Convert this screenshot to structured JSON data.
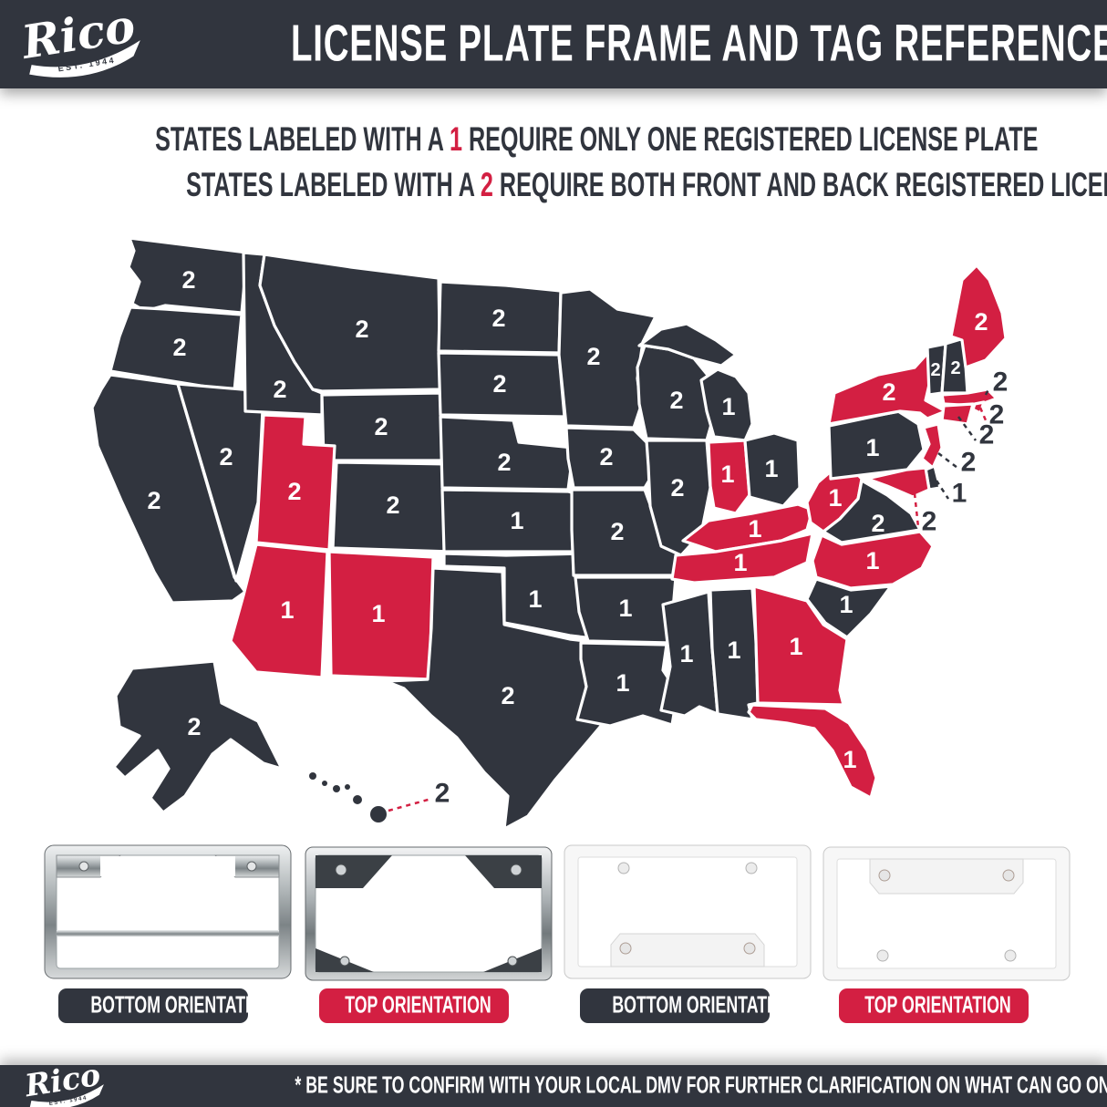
{
  "header": {
    "brand": "Rico",
    "brand_est": "EST. 1944",
    "title": "LICENSE PLATE FRAME AND TAG REFERENCE"
  },
  "legend": {
    "line1_prefix": "STATES LABELED WITH A ",
    "line1_num": "1",
    "line1_suffix": " REQUIRE ONLY ONE REGISTERED LICENSE PLATE",
    "line2_prefix": "STATES LABELED WITH A ",
    "line2_num": "2",
    "line2_suffix": " REQUIRE BOTH FRONT AND BACK REGISTERED LICENSE PLATES"
  },
  "colors": {
    "dark": "#31353E",
    "red": "#D31F42",
    "white": "#FFFFFF",
    "chrome": "#C9CDCF"
  },
  "map": {
    "orientation_color_key": {
      "bottom": "dark",
      "top": "red"
    },
    "states": [
      {
        "id": "WA",
        "name": "Washington",
        "plates": 2,
        "orientation": "bottom"
      },
      {
        "id": "OR",
        "name": "Oregon",
        "plates": 2,
        "orientation": "bottom"
      },
      {
        "id": "CA",
        "name": "California",
        "plates": 2,
        "orientation": "bottom"
      },
      {
        "id": "NV",
        "name": "Nevada",
        "plates": 2,
        "orientation": "bottom"
      },
      {
        "id": "ID",
        "name": "Idaho",
        "plates": 2,
        "orientation": "bottom"
      },
      {
        "id": "MT",
        "name": "Montana",
        "plates": 2,
        "orientation": "bottom"
      },
      {
        "id": "WY",
        "name": "Wyoming",
        "plates": 2,
        "orientation": "bottom"
      },
      {
        "id": "UT",
        "name": "Utah",
        "plates": 2,
        "orientation": "top"
      },
      {
        "id": "CO",
        "name": "Colorado",
        "plates": 2,
        "orientation": "bottom"
      },
      {
        "id": "AZ",
        "name": "Arizona",
        "plates": 1,
        "orientation": "top"
      },
      {
        "id": "NM",
        "name": "New Mexico",
        "plates": 1,
        "orientation": "top"
      },
      {
        "id": "ND",
        "name": "North Dakota",
        "plates": 2,
        "orientation": "bottom"
      },
      {
        "id": "SD",
        "name": "South Dakota",
        "plates": 2,
        "orientation": "bottom"
      },
      {
        "id": "NE",
        "name": "Nebraska",
        "plates": 2,
        "orientation": "bottom"
      },
      {
        "id": "KS",
        "name": "Kansas",
        "plates": 1,
        "orientation": "bottom"
      },
      {
        "id": "OK",
        "name": "Oklahoma",
        "plates": 1,
        "orientation": "bottom"
      },
      {
        "id": "TX",
        "name": "Texas",
        "plates": 2,
        "orientation": "bottom"
      },
      {
        "id": "MN",
        "name": "Minnesota",
        "plates": 2,
        "orientation": "bottom"
      },
      {
        "id": "IA",
        "name": "Iowa",
        "plates": 2,
        "orientation": "bottom"
      },
      {
        "id": "MO",
        "name": "Missouri",
        "plates": 2,
        "orientation": "bottom"
      },
      {
        "id": "AR",
        "name": "Arkansas",
        "plates": 1,
        "orientation": "bottom"
      },
      {
        "id": "LA",
        "name": "Louisiana",
        "plates": 1,
        "orientation": "bottom"
      },
      {
        "id": "WI",
        "name": "Wisconsin",
        "plates": 2,
        "orientation": "bottom"
      },
      {
        "id": "IL",
        "name": "Illinois",
        "plates": 2,
        "orientation": "bottom"
      },
      {
        "id": "MS",
        "name": "Mississippi",
        "plates": 1,
        "orientation": "bottom"
      },
      {
        "id": "AL",
        "name": "Alabama",
        "plates": 1,
        "orientation": "bottom"
      },
      {
        "id": "MI",
        "name": "Michigan",
        "plates": 1,
        "orientation": "bottom"
      },
      {
        "id": "IN",
        "name": "Indiana",
        "plates": 1,
        "orientation": "top"
      },
      {
        "id": "OH",
        "name": "Ohio",
        "plates": 1,
        "orientation": "bottom"
      },
      {
        "id": "KY",
        "name": "Kentucky",
        "plates": 1,
        "orientation": "top"
      },
      {
        "id": "TN",
        "name": "Tennessee",
        "plates": 1,
        "orientation": "top"
      },
      {
        "id": "WV",
        "name": "West Virginia",
        "plates": 1,
        "orientation": "top"
      },
      {
        "id": "VA",
        "name": "Virginia",
        "plates": 2,
        "orientation": "bottom"
      },
      {
        "id": "NC",
        "name": "North Carolina",
        "plates": 1,
        "orientation": "top"
      },
      {
        "id": "SC",
        "name": "South Carolina",
        "plates": 1,
        "orientation": "bottom"
      },
      {
        "id": "GA",
        "name": "Georgia",
        "plates": 1,
        "orientation": "top"
      },
      {
        "id": "FL",
        "name": "Florida",
        "plates": 1,
        "orientation": "top"
      },
      {
        "id": "PA",
        "name": "Pennsylvania",
        "plates": 1,
        "orientation": "bottom"
      },
      {
        "id": "NY",
        "name": "New York",
        "plates": 2,
        "orientation": "top"
      },
      {
        "id": "VT",
        "name": "Vermont",
        "plates": 2,
        "orientation": "bottom"
      },
      {
        "id": "NH",
        "name": "New Hampshire",
        "plates": 2,
        "orientation": "bottom"
      },
      {
        "id": "ME",
        "name": "Maine",
        "plates": 2,
        "orientation": "top"
      },
      {
        "id": "MA",
        "name": "Massachusetts",
        "plates": 2,
        "orientation": "top"
      },
      {
        "id": "RI",
        "name": "Rhode Island",
        "plates": 2,
        "orientation": "top"
      },
      {
        "id": "CT",
        "name": "Connecticut",
        "plates": 2,
        "orientation": "top"
      },
      {
        "id": "NJ",
        "name": "New Jersey",
        "plates": 2,
        "orientation": "top"
      },
      {
        "id": "DE",
        "name": "Delaware",
        "plates": 1,
        "orientation": "bottom"
      },
      {
        "id": "MD",
        "name": "Maryland",
        "plates": 2,
        "orientation": "top"
      },
      {
        "id": "AK",
        "name": "Alaska",
        "plates": 2,
        "orientation": "bottom"
      },
      {
        "id": "HI",
        "name": "Hawaii",
        "plates": 2,
        "orientation": "bottom"
      }
    ]
  },
  "frames": [
    {
      "style": "chrome",
      "label": "BOTTOM ORIENTATION",
      "label_color": "dark"
    },
    {
      "style": "chrome",
      "label": "TOP ORIENTATION",
      "label_color": "red"
    },
    {
      "style": "white",
      "label": "BOTTOM ORIENTATION",
      "label_color": "dark"
    },
    {
      "style": "white",
      "label": "TOP ORIENTATION",
      "label_color": "red"
    }
  ],
  "footer": {
    "brand": "Rico",
    "brand_est": "EST. 1944",
    "disclaimer": "* BE SURE TO CONFIRM WITH YOUR LOCAL DMV FOR FURTHER CLARIFICATION ON WHAT CAN GO ON YOUR VEHICLE *"
  }
}
